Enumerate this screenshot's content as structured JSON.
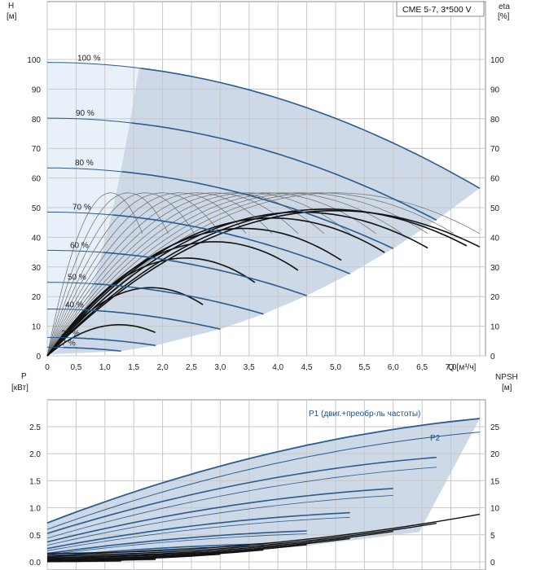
{
  "model_label": "CME 5-7, 3*500 V",
  "colors": {
    "envelope": "#cdd9e6",
    "envelope_light": "#e8f1fa",
    "curve_blue": "#2a5b91",
    "grid": "#c8c8c8",
    "eff_black": "#111111"
  },
  "top_chart": {
    "y_unit_name": "H",
    "y_unit": "[м]",
    "y2_unit_name": "eta",
    "y2_unit": "[%]",
    "x_unit": "Q [м³/ч]",
    "x_ticks": [
      "0",
      "0,5",
      "1,0",
      "1,5",
      "2,0",
      "2,5",
      "3,0",
      "3,5",
      "4,0",
      "4,5",
      "5,0",
      "5,5",
      "6,0",
      "6,5",
      "7,0"
    ],
    "y_ticks": [
      "0",
      "10",
      "20",
      "30",
      "40",
      "50",
      "60",
      "70",
      "80",
      "90",
      "100"
    ],
    "y2_ticks": [
      "0",
      "10",
      "20",
      "30",
      "40",
      "50",
      "60",
      "70",
      "80",
      "90",
      "100"
    ],
    "speed_labels": [
      "100 %",
      "90 %",
      "80 %",
      "70 %",
      "60 %",
      "50 %",
      "40 %",
      "25 %",
      "17 %"
    ]
  },
  "bottom_chart": {
    "y_unit_name": "P",
    "y_unit": "[кВт]",
    "y2_unit_name": "NPSH",
    "y2_unit": "[м]",
    "y_ticks": [
      "0.0",
      "0.5",
      "1.0",
      "1.5",
      "2.0",
      "2.5"
    ],
    "y2_ticks": [
      "0",
      "5",
      "10",
      "15",
      "20",
      "25"
    ],
    "p1_label": "P1 (двиг.+преобр-ль частоты)",
    "p2_label": "P2"
  },
  "chart_data": [
    {
      "type": "line",
      "xlabel": "Q [м³/ч]",
      "ylabel": "H [м]",
      "y2label": "eta [%]",
      "xlim": [
        0,
        7.6
      ],
      "ylim": [
        0,
        100
      ],
      "y2lim": [
        0,
        100
      ],
      "grid": true,
      "head_curves": [
        {
          "name": "100 %",
          "h0": 99,
          "qmax": 7.5,
          "hmax": 56.5
        },
        {
          "name": "90 %",
          "h0": 80.2,
          "qmax": 6.75,
          "hmax": 45.8
        },
        {
          "name": "80 %",
          "h0": 63.4,
          "qmax": 6.0,
          "hmax": 36.2
        },
        {
          "name": "70 %",
          "h0": 48.5,
          "qmax": 5.25,
          "hmax": 27.7
        },
        {
          "name": "60 %",
          "h0": 35.6,
          "qmax": 4.5,
          "hmax": 20.3
        },
        {
          "name": "50 %",
          "h0": 24.8,
          "qmax": 3.75,
          "hmax": 14.1
        },
        {
          "name": "40 %",
          "h0": 15.8,
          "qmax": 3.0,
          "hmax": 9.0
        },
        {
          "name": "25 %",
          "h0": 6.2,
          "qmax": 1.88,
          "hmax": 3.5
        },
        {
          "name": "17 %",
          "h0": 2.9,
          "qmax": 1.28,
          "hmax": 1.6
        }
      ],
      "efficiency_peak_percent": 55,
      "efficiency_bep_flow_at_100": 5.0
    },
    {
      "type": "line",
      "xlabel": "Q [м³/ч]",
      "ylabel": "P [кВт]",
      "y2label": "NPSH [м]",
      "ylim": [
        0,
        2.8
      ],
      "y2lim": [
        0,
        28
      ],
      "grid": true,
      "series": [
        {
          "name": "P1 (двиг.+преобр-ль частоты)",
          "p0": 0.72,
          "pmax": 2.65,
          "qmax": 7.5
        },
        {
          "name": "P2",
          "p0": 0.6,
          "pmax": 2.4,
          "qmax": 7.5
        }
      ],
      "npsh_max": 8.8
    }
  ]
}
